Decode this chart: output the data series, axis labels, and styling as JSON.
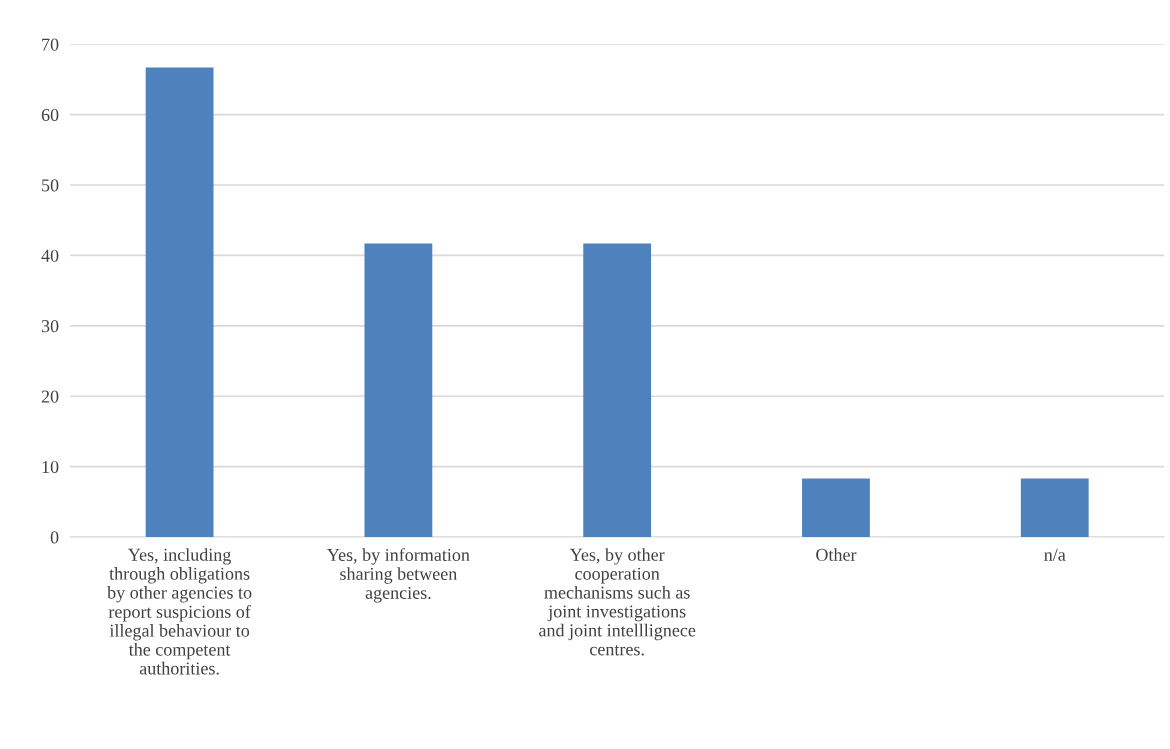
{
  "chart_data": {
    "type": "bar",
    "categories": [
      "Yes, including\nthrough obligations\nby other agencies to\nreport suspicions of\nillegal behaviour to\nthe competent\nauthorities.",
      "Yes, by information\nsharing between\nagencies.",
      "Yes, by other\ncooperation\nmechanisms such as\njoint investigations\nand joint intelllignece\ncentres.",
      "Other",
      "n/a"
    ],
    "values": [
      66.7,
      41.7,
      41.7,
      8.3,
      8.3
    ],
    "color": "#4f81bd",
    "ylim": [
      0,
      70
    ],
    "yticks": [
      0,
      10,
      20,
      30,
      40,
      50,
      60,
      70
    ],
    "grid": "y"
  }
}
